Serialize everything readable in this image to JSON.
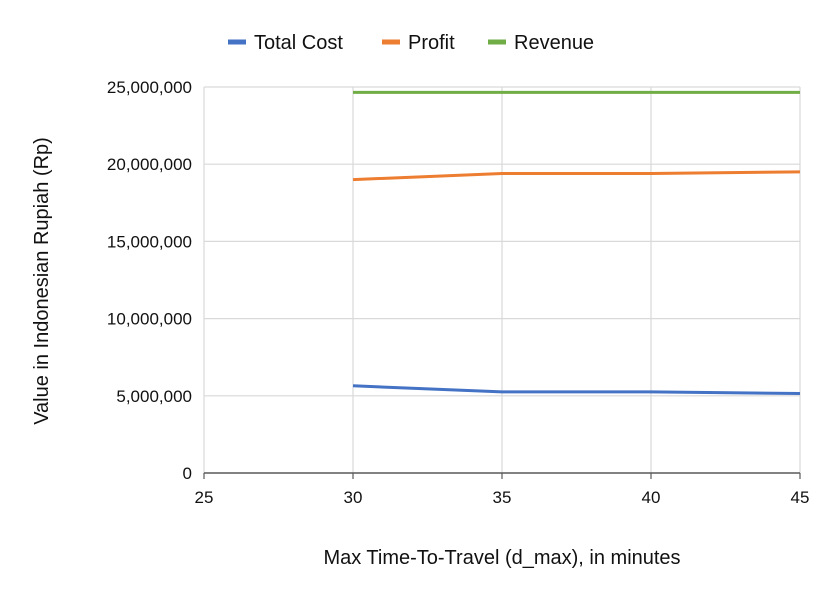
{
  "chart_data": {
    "type": "line",
    "title": "",
    "xlabel": "Max Time-To-Travel (d_max), in minutes",
    "ylabel": "Value in Indonesian Rupiah (Rp)",
    "x": [
      30,
      35,
      40,
      45
    ],
    "xlim": [
      25,
      45
    ],
    "xticks": [
      25,
      30,
      35,
      40,
      45
    ],
    "ylim": [
      0,
      25000000
    ],
    "yticks": [
      0,
      5000000,
      10000000,
      15000000,
      20000000,
      25000000
    ],
    "ytick_labels": [
      "0",
      "5,000,000",
      "10,000,000",
      "15,000,000",
      "20,000,000",
      "25,000,000"
    ],
    "grid": true,
    "legend_position": "top",
    "series": [
      {
        "name": "Total Cost",
        "color": "#4472C4",
        "values": [
          5650000,
          5250000,
          5250000,
          5150000
        ]
      },
      {
        "name": "Profit",
        "color": "#ED7D31",
        "values": [
          19000000,
          19400000,
          19400000,
          19500000
        ]
      },
      {
        "name": "Revenue",
        "color": "#70AD47",
        "values": [
          24650000,
          24650000,
          24650000,
          24650000
        ]
      }
    ]
  }
}
